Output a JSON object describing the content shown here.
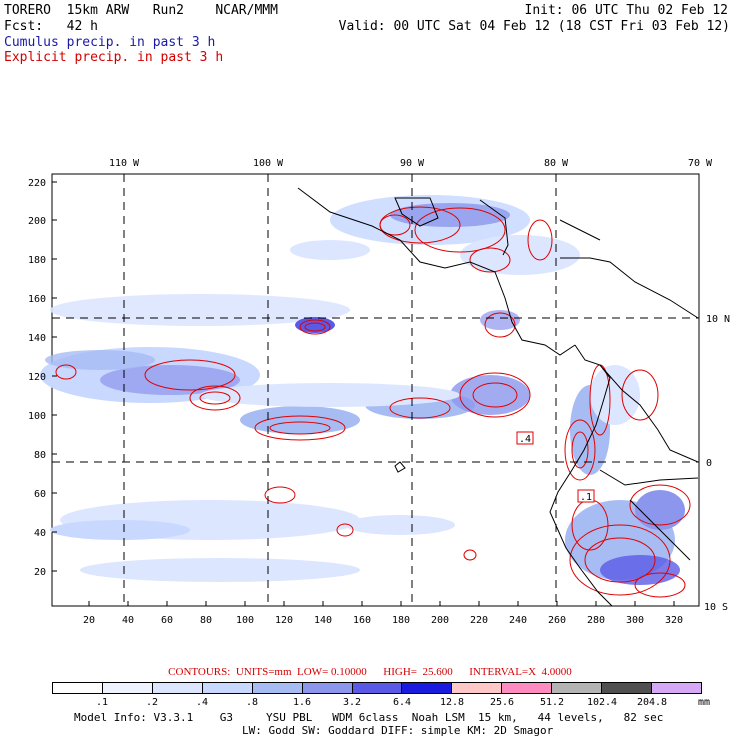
{
  "header": {
    "model_line": "TORERO  15km ARW   Run2    NCAR/MMM",
    "init": "Init: 06 UTC Thu 02 Feb 12",
    "fcst_line": "Fcst:   42 h",
    "valid": "Valid: 00 UTC Sat 04 Feb 12 (18 CST Fri 03 Feb 12)",
    "cumulus_label": "Cumulus precip. in past 3 h",
    "explicit_label": "Explicit precip. in past 3 h"
  },
  "axes": {
    "left_y": [
      "220",
      "200",
      "180",
      "160",
      "140",
      "120",
      "100",
      "80",
      "60",
      "40",
      "20"
    ],
    "bottom_x": [
      "20",
      "40",
      "60",
      "80",
      "100",
      "120",
      "140",
      "160",
      "180",
      "200",
      "220",
      "240",
      "260",
      "280",
      "300",
      "320"
    ],
    "top_lon": [
      "110 W",
      "100 W",
      "90 W",
      "80 W",
      "70 W"
    ],
    "right_lat": [
      "10 N",
      "0",
      "10 S"
    ]
  },
  "annotations": {
    "box_a": ".4",
    "box_b": ".1"
  },
  "contour_info": "CONTOURS:  UNITS=mm  LOW= 0.10000      HIGH=  25.600      INTERVAL=X  4.0000",
  "colorbar": {
    "labels": [
      ".1",
      ".2",
      ".4",
      ".8",
      "1.6",
      "3.2",
      "6.4",
      "12.8",
      "25.6",
      "51.2",
      "102.4",
      "204.8"
    ],
    "units": "mm",
    "colors": [
      "#ffffff",
      "#eef3ff",
      "#dce6ff",
      "#c8d8ff",
      "#a8bcf4",
      "#8c96ec",
      "#5a5ae6",
      "#1a1ae0",
      "#ffc8c8",
      "#ff8cc0",
      "#b4b4b4",
      "#505050",
      "#d8a8f8"
    ]
  },
  "footer": {
    "line1": "Model Info: V3.3.1    G3     YSU PBL   WDM 6class  Noah LSM  15 km,   44 levels,   82 sec",
    "line2": "LW: Godd SW: Goddard DIFF: simple KM: 2D Smagor"
  }
}
